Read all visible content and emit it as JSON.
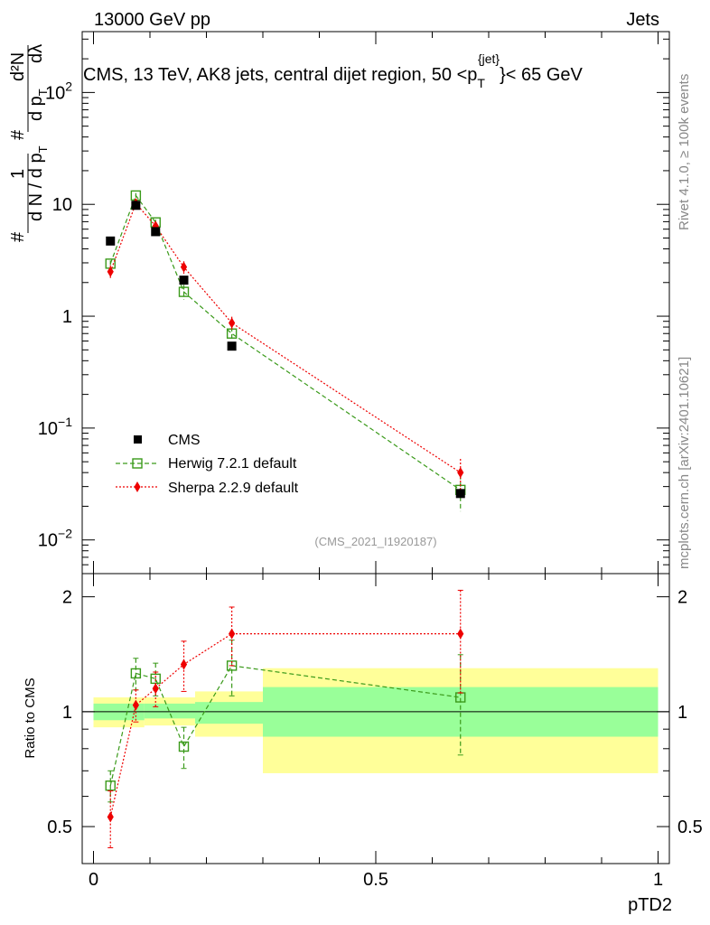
{
  "header": {
    "left": "13000 GeV pp",
    "right": "Jets"
  },
  "side_labels": {
    "rivet": "Rivet 4.1.0, ≥ 100k events",
    "mcplots": "mcplots.cern.ch [arXiv:2401.10621]"
  },
  "chart_data": {
    "type": "line",
    "title_parts": {
      "prefix": "CMS, 13 TeV, AK8 jets, central dijet region, 50 <p",
      "sub": "T",
      "sup": "{jet}",
      "suffix": "}< 65 GeV"
    },
    "analysis_id": "(CMS_2021_I1920187)",
    "xlabel": "pTD2",
    "ylabel_ratio": "Ratio to CMS",
    "ylabel_main_parts": {
      "hash1": "#",
      "one": "1",
      "dN": "d N / d p",
      "dN_sub": "T",
      "hash2": "#",
      "d2N": "d²N",
      "dpT": "d p",
      "dpT_sub": "T",
      "dlambda": "dλ",
      "hash3": "#"
    },
    "xlim": [
      -0.02,
      1.02
    ],
    "ylim_main": [
      0.005,
      350
    ],
    "ylim_ratio": [
      0.4,
      2.3
    ],
    "x_ticks": [
      "0",
      "0.5",
      "1"
    ],
    "y_ticks_main": [
      {
        "value": 0.01,
        "base": "10",
        "exp": "−2"
      },
      {
        "value": 0.1,
        "base": "10",
        "exp": "−1"
      },
      {
        "value": 1,
        "base": "1",
        "exp": ""
      },
      {
        "value": 10,
        "base": "10",
        "exp": ""
      },
      {
        "value": 100,
        "base": "10",
        "exp": "2"
      }
    ],
    "y_ticks_ratio": [
      "0.5",
      "1",
      "2"
    ],
    "bins": [
      {
        "lo": 0.0,
        "hi": 0.09,
        "y1lo": 0.95,
        "y1hi": 1.05,
        "y2lo": 0.91,
        "y2hi": 1.09
      },
      {
        "lo": 0.09,
        "hi": 0.18,
        "y1lo": 0.96,
        "y1hi": 1.05,
        "y2lo": 0.92,
        "y2hi": 1.09
      },
      {
        "lo": 0.18,
        "hi": 0.3,
        "y1lo": 0.93,
        "y1hi": 1.06,
        "y2lo": 0.86,
        "y2hi": 1.13
      },
      {
        "lo": 0.3,
        "hi": 1.0,
        "y1lo": 0.86,
        "y1hi": 1.16,
        "y2lo": 0.69,
        "y2hi": 1.3
      }
    ],
    "series": [
      {
        "name": "CMS",
        "color": "#000000",
        "marker": "filled-square",
        "x": [
          0.03,
          0.075,
          0.11,
          0.16,
          0.245,
          0.65
        ],
        "y": [
          4.7,
          9.8,
          5.7,
          2.1,
          0.54,
          0.026
        ]
      },
      {
        "name": "Herwig 7.2.1 default",
        "color": "#3a9a1a",
        "marker": "open-square",
        "x": [
          0.03,
          0.075,
          0.11,
          0.16,
          0.245,
          0.65
        ],
        "y": [
          2.95,
          12.0,
          6.9,
          1.65,
          0.7,
          0.028
        ],
        "yerr": [
          0.2,
          0.6,
          0.4,
          0.25,
          0.1,
          0.01
        ],
        "ratio": [
          0.64,
          1.26,
          1.22,
          0.81,
          1.32,
          1.09
        ],
        "ratio_err": [
          0.06,
          0.12,
          0.12,
          0.1,
          0.22,
          0.32
        ]
      },
      {
        "name": "Sherpa 2.2.9 default",
        "color": "#ee0000",
        "marker": "filled-diamond",
        "x": [
          0.03,
          0.075,
          0.11,
          0.16,
          0.245,
          0.65
        ],
        "y": [
          2.5,
          10.2,
          6.4,
          2.75,
          0.87,
          0.04
        ],
        "yerr": [
          0.35,
          0.6,
          0.5,
          0.35,
          0.12,
          0.013
        ],
        "ratio": [
          0.53,
          1.04,
          1.15,
          1.33,
          1.6,
          1.6
        ],
        "ratio_err": [
          0.09,
          0.1,
          0.12,
          0.2,
          0.28,
          0.48
        ]
      }
    ]
  }
}
